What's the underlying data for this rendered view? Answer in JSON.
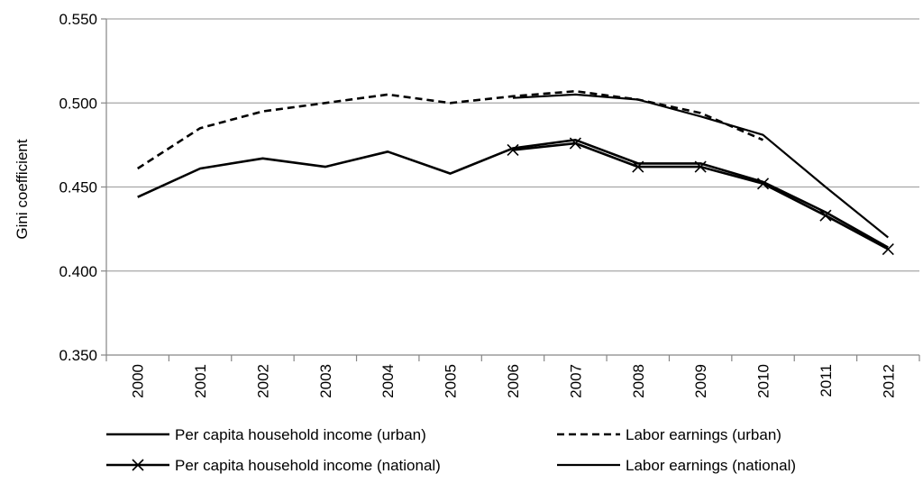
{
  "chart_data": {
    "type": "line",
    "title": "",
    "xlabel": "",
    "ylabel": "Gini coefficient",
    "x": [
      "2000",
      "2001",
      "2002",
      "2003",
      "2004",
      "2005",
      "2006",
      "2007",
      "2008",
      "2009",
      "2010",
      "2011",
      "2012"
    ],
    "ylim": [
      0.35,
      0.55
    ],
    "yticks": [
      "0.350",
      "0.400",
      "0.450",
      "0.500",
      "0.550"
    ],
    "grid": "horizontal",
    "legend_position": "bottom",
    "series": [
      {
        "name": "Per capita household income (urban)",
        "style": "solid",
        "marker": "none",
        "values": [
          0.444,
          0.461,
          0.467,
          0.462,
          0.471,
          0.458,
          0.473,
          0.478,
          0.464,
          0.464,
          0.453,
          0.435,
          0.414
        ]
      },
      {
        "name": "Labor earnings (urban)",
        "style": "dashed",
        "marker": "none",
        "values": [
          0.461,
          0.485,
          0.495,
          0.5,
          0.505,
          0.5,
          0.504,
          0.507,
          0.502,
          0.494,
          0.478,
          null,
          null
        ]
      },
      {
        "name": "Per capita household income (national)",
        "style": "solid",
        "marker": "x",
        "values": [
          null,
          null,
          null,
          null,
          null,
          null,
          0.472,
          0.476,
          0.462,
          0.462,
          0.452,
          0.433,
          0.413
        ]
      },
      {
        "name": "Labor earnings (national)",
        "style": "solid",
        "marker": "none",
        "values": [
          null,
          null,
          null,
          null,
          null,
          null,
          0.503,
          0.505,
          0.502,
          0.492,
          0.481,
          0.45,
          0.42
        ]
      }
    ]
  },
  "colors": {
    "line": "#000000",
    "grid": "#a6a6a6",
    "axis": "#868686"
  }
}
